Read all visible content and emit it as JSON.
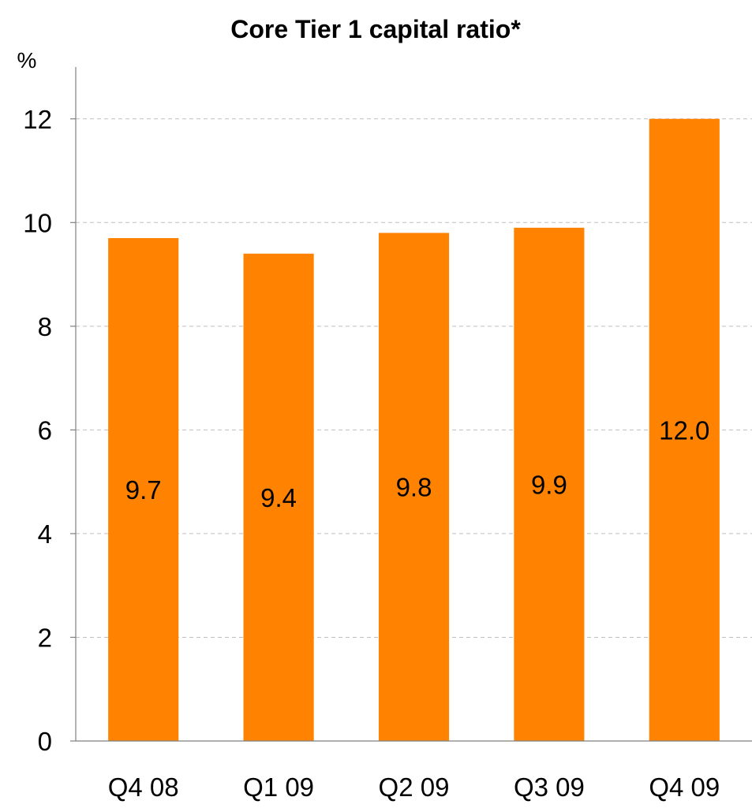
{
  "chart_data": {
    "type": "bar",
    "title": "Core Tier 1 capital ratio*",
    "ylabel": "%",
    "xlabel": "",
    "categories": [
      "Q4 08",
      "Q1 09",
      "Q2 09",
      "Q3 09",
      "Q4 09"
    ],
    "values": [
      9.7,
      9.4,
      9.8,
      9.9,
      12.0
    ],
    "data_labels": [
      "9.7",
      "9.4",
      "9.8",
      "9.9",
      "12.0"
    ],
    "ylim": [
      0,
      13
    ],
    "yticks": [
      0,
      2,
      4,
      6,
      8,
      10,
      12
    ],
    "grid": true,
    "legend": "none",
    "bar_color": "#FF8200"
  }
}
